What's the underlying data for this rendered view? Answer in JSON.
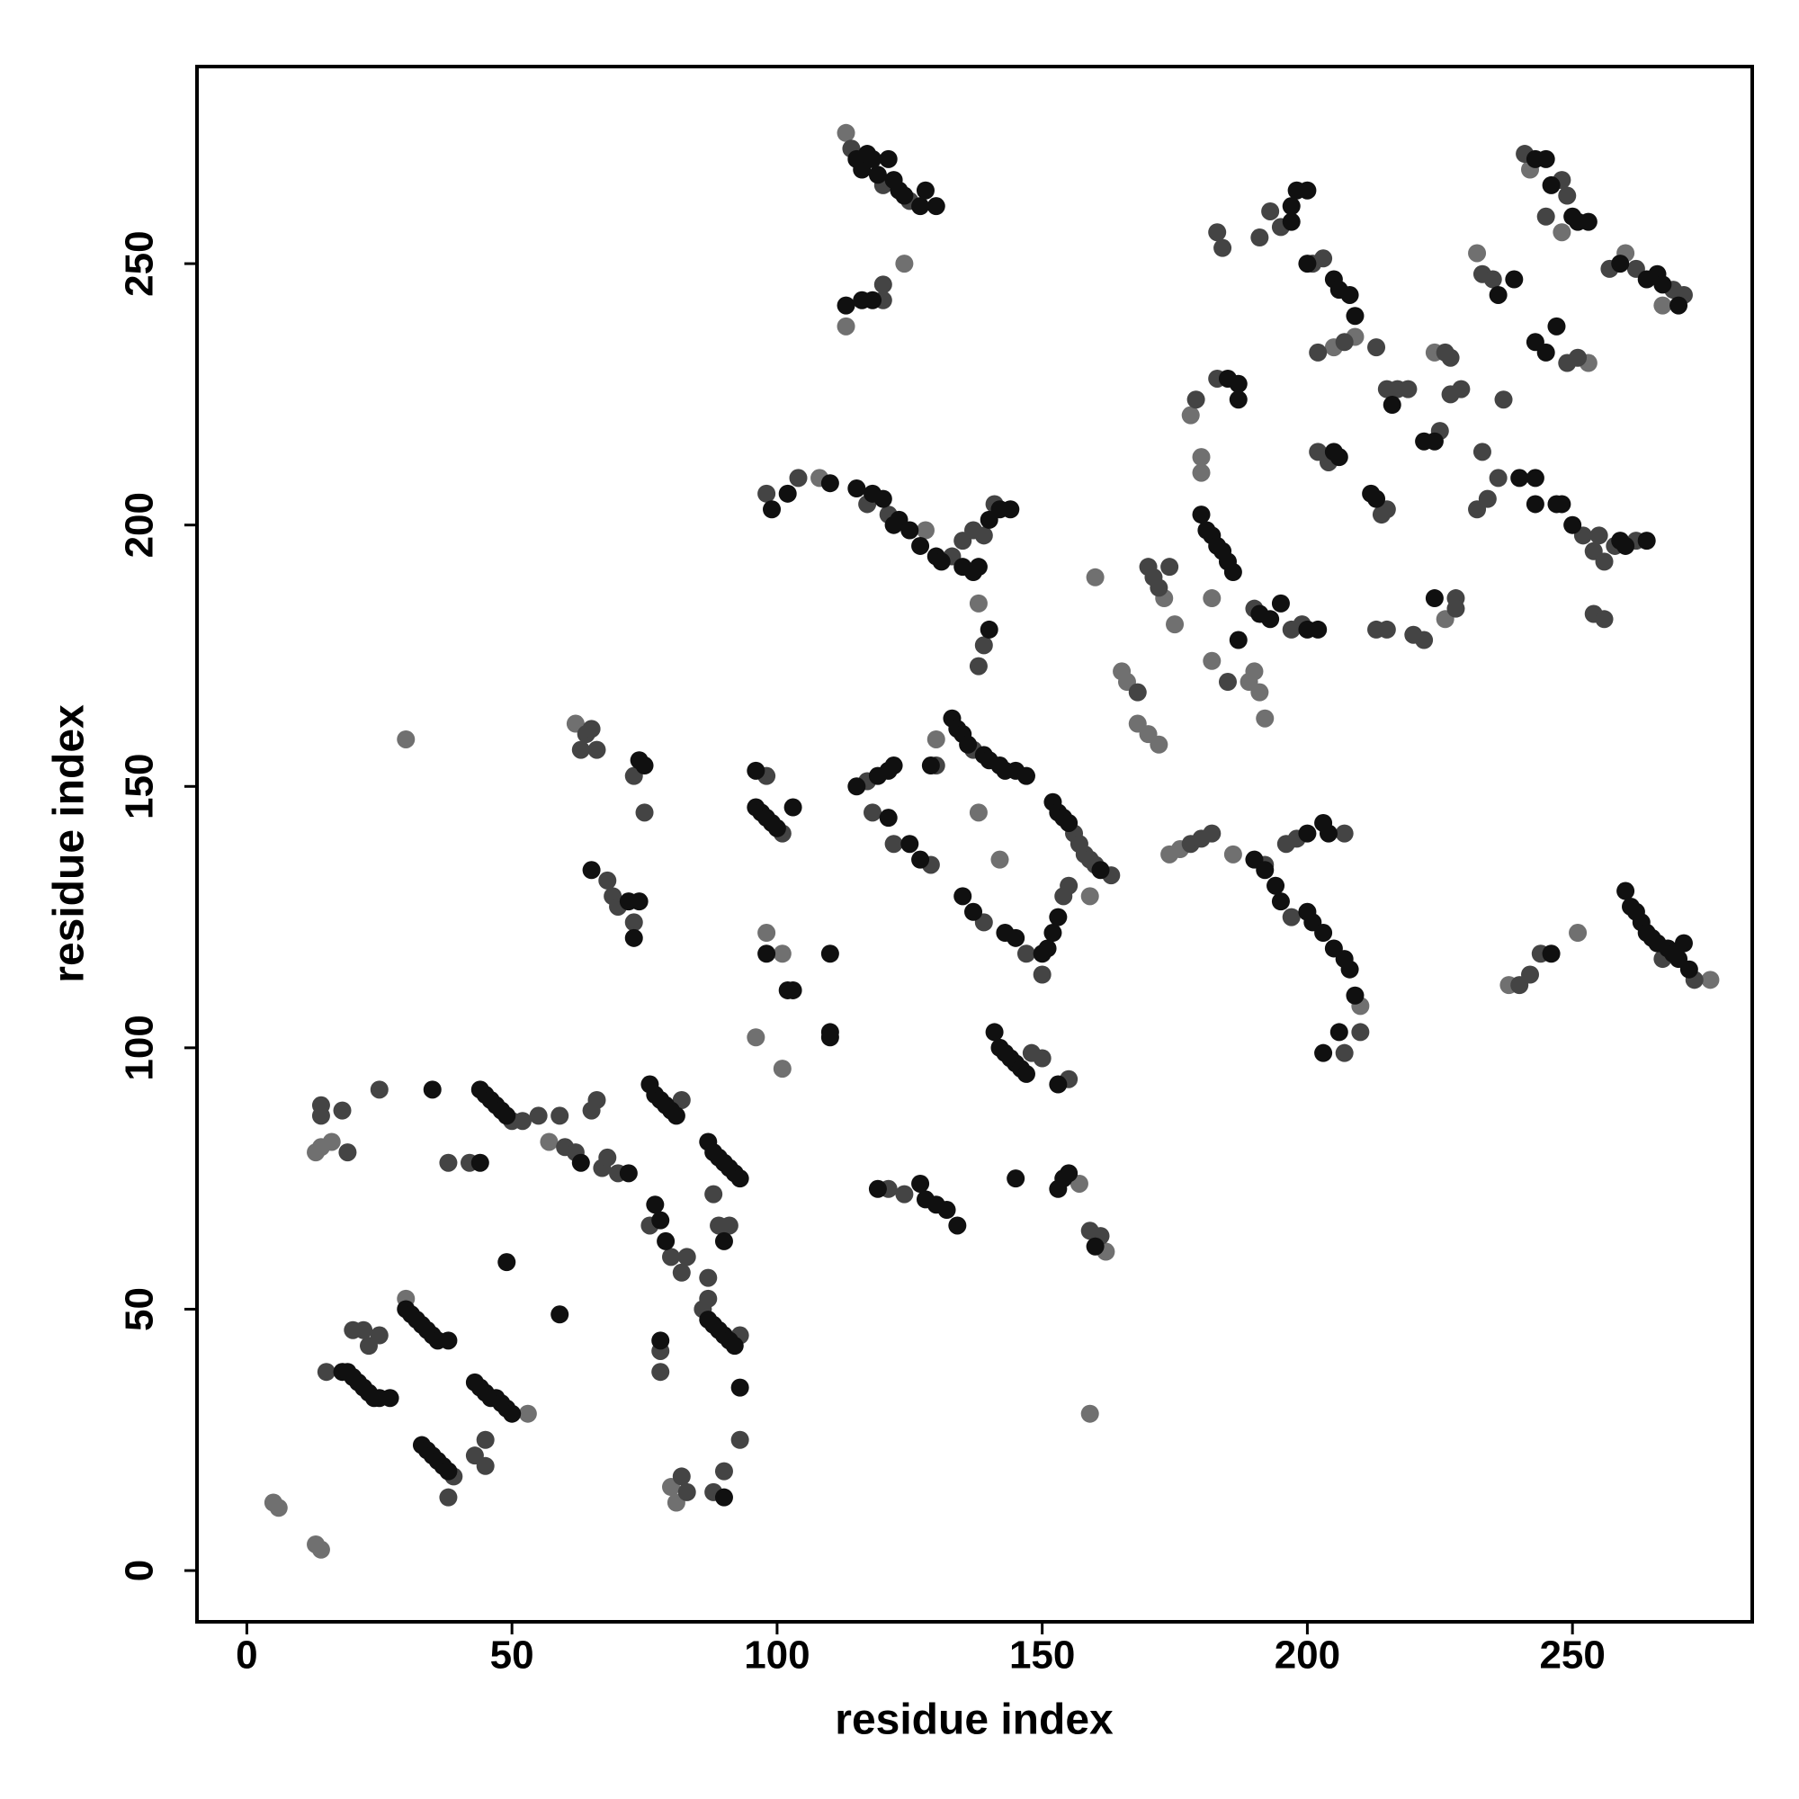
{
  "chart_data": {
    "type": "scatter",
    "xlabel": "residue index",
    "ylabel": "residue index",
    "xlim": [
      -9.4,
      283.9
    ],
    "ylim": [
      -9.8,
      287.7
    ],
    "xticks": [
      0,
      50,
      100,
      150,
      200,
      250
    ],
    "yticks": [
      0,
      50,
      100,
      150,
      200,
      250
    ],
    "series": [
      {
        "color": "#707070",
        "x": [
          5,
          6,
          13,
          14,
          30,
          53,
          13,
          14,
          16,
          57,
          30,
          62,
          80,
          81,
          98,
          101,
          101,
          96,
          108,
          113,
          113,
          124,
          128,
          130,
          138,
          142,
          138,
          157,
          162,
          159,
          159,
          160,
          165,
          166,
          173,
          175,
          168,
          170,
          172,
          174,
          176,
          186,
          178,
          180,
          180,
          182,
          182,
          189,
          190,
          191,
          192,
          205,
          209,
          224,
          210,
          226,
          232,
          242,
          248,
          253,
          260,
          267,
          276,
          238,
          251
        ],
        "y": [
          13,
          12,
          5,
          4,
          52,
          30,
          80,
          81,
          82,
          82,
          159,
          162,
          16,
          13,
          122,
          118,
          96,
          102,
          209,
          275,
          238,
          250,
          199,
          159,
          145,
          136,
          185,
          74,
          61,
          30,
          129,
          190,
          172,
          170,
          186,
          181,
          162,
          160,
          158,
          137,
          138,
          137,
          221,
          213,
          210,
          186,
          174,
          170,
          172,
          168,
          163,
          234,
          236,
          233,
          108,
          182,
          252,
          268,
          256,
          231,
          252,
          242,
          113,
          112,
          122
        ]
      },
      {
        "color": "#444444",
        "x": [
          20,
          22,
          23,
          25,
          15,
          39,
          38,
          43,
          45,
          45,
          14,
          14,
          18,
          19,
          25,
          38,
          42,
          50,
          52,
          55,
          59,
          60,
          62,
          65,
          66,
          67,
          68,
          70,
          64,
          63,
          65,
          66,
          73,
          75,
          68,
          69,
          70,
          73,
          82,
          76,
          80,
          82,
          83,
          78,
          78,
          82,
          83,
          88,
          89,
          91,
          86,
          93,
          87,
          87,
          88,
          90,
          93,
          98,
          101,
          98,
          104,
          114,
          120,
          125,
          120,
          120,
          117,
          121,
          133,
          135,
          137,
          139,
          141,
          117,
          118,
          122,
          129,
          130,
          137,
          139,
          138,
          139,
          147,
          154,
          150,
          148,
          150,
          155,
          156,
          157,
          158,
          159,
          160,
          163,
          155,
          121,
          124,
          159,
          161,
          168,
          170,
          171,
          172,
          174,
          178,
          180,
          182,
          179,
          183,
          183,
          184,
          185,
          190,
          197,
          199,
          191,
          193,
          195,
          201,
          203,
          202,
          207,
          213,
          215,
          217,
          219,
          226,
          227,
          202,
          204,
          214,
          215,
          197,
          192,
          196,
          198,
          207,
          207,
          210,
          213,
          215,
          220,
          222,
          228,
          228,
          225,
          227,
          229,
          233,
          235,
          237,
          233,
          236,
          252,
          232,
          234,
          241,
          248,
          249,
          245,
          249,
          251,
          254,
          255,
          256,
          258,
          262,
          254,
          256,
          257,
          262,
          269,
          271,
          273,
          267,
          240,
          242,
          244
        ],
        "y": [
          46,
          46,
          43,
          45,
          38,
          18,
          14,
          22,
          20,
          25,
          89,
          87,
          88,
          80,
          92,
          78,
          78,
          86,
          86,
          87,
          87,
          81,
          80,
          88,
          90,
          77,
          79,
          76,
          160,
          157,
          161,
          157,
          152,
          145,
          132,
          129,
          127,
          124,
          90,
          66,
          60,
          57,
          60,
          42,
          38,
          18,
          15,
          72,
          66,
          66,
          50,
          45,
          56,
          52,
          15,
          19,
          25,
          152,
          141,
          206,
          209,
          272,
          265,
          262,
          246,
          243,
          204,
          202,
          194,
          197,
          199,
          198,
          204,
          151,
          145,
          139,
          135,
          154,
          157,
          177,
          173,
          124,
          118,
          129,
          114,
          99,
          98,
          94,
          141,
          139,
          137,
          136,
          135,
          133,
          131,
          73,
          72,
          65,
          64,
          168,
          192,
          190,
          188,
          192,
          139,
          140,
          141,
          224,
          228,
          256,
          253,
          170,
          184,
          180,
          181,
          255,
          260,
          257,
          250,
          251,
          233,
          235,
          234,
          226,
          226,
          226,
          233,
          232,
          214,
          212,
          202,
          203,
          125,
          135,
          139,
          140,
          141,
          99,
          103,
          180,
          180,
          179,
          178,
          186,
          184,
          218,
          225,
          226,
          248,
          247,
          224,
          214,
          209,
          198,
          203,
          205,
          271,
          266,
          263,
          259,
          231,
          232,
          195,
          198,
          193,
          196,
          197,
          183,
          182,
          249,
          249,
          245,
          244,
          113,
          117,
          112,
          114,
          118
        ]
      },
      {
        "color": "#101010",
        "x": [
          18,
          19,
          20,
          21,
          22,
          23,
          24,
          25,
          27,
          30,
          31,
          32,
          33,
          34,
          35,
          36,
          38,
          33,
          34,
          35,
          36,
          37,
          38,
          43,
          44,
          45,
          46,
          47,
          48,
          49,
          50,
          49,
          59,
          35,
          44,
          44,
          45,
          46,
          47,
          48,
          49,
          63,
          72,
          74,
          75,
          65,
          72,
          73,
          74,
          76,
          77,
          78,
          79,
          80,
          81,
          77,
          78,
          79,
          78,
          87,
          88,
          89,
          90,
          91,
          92,
          93,
          90,
          87,
          88,
          89,
          90,
          91,
          92,
          90,
          93,
          96,
          96,
          97,
          98,
          99,
          100,
          103,
          99,
          102,
          110,
          98,
          102,
          103,
          110,
          110,
          110,
          115,
          116,
          117,
          118,
          119,
          121,
          122,
          123,
          124,
          127,
          128,
          130,
          113,
          116,
          118,
          115,
          118,
          120,
          122,
          123,
          125,
          127,
          130,
          131,
          135,
          137,
          138,
          140,
          142,
          144,
          115,
          119,
          121,
          122,
          121,
          125,
          127,
          129,
          133,
          134,
          135,
          136,
          139,
          140,
          142,
          143,
          145,
          147,
          140,
          135,
          137,
          143,
          145,
          150,
          151,
          152,
          153,
          141,
          142,
          143,
          144,
          145,
          146,
          147,
          153,
          145,
          152,
          153,
          154,
          155,
          161,
          119,
          127,
          128,
          130,
          132,
          134,
          153,
          154,
          155,
          160,
          185,
          187,
          187,
          180,
          181,
          182,
          183,
          184,
          185,
          186,
          187,
          191,
          193,
          195,
          200,
          202,
          197,
          198,
          200,
          197,
          200,
          205,
          206,
          208,
          209,
          216,
          205,
          206,
          212,
          213,
          190,
          192,
          194,
          195,
          200,
          203,
          204,
          200,
          201,
          203,
          205,
          207,
          208,
          209,
          206,
          203,
          224,
          222,
          224,
          236,
          239,
          240,
          243,
          243,
          247,
          248,
          250,
          243,
          245,
          246,
          250,
          251,
          253,
          243,
          245,
          247,
          259,
          260,
          264,
          259,
          264,
          266,
          267,
          270,
          260,
          261,
          262,
          263,
          264,
          265,
          266,
          268,
          269,
          270,
          272,
          271,
          246
        ],
        "y": [
          38,
          38,
          37,
          36,
          35,
          34,
          33,
          33,
          33,
          50,
          49,
          48,
          47,
          46,
          45,
          44,
          44,
          24,
          23,
          22,
          21,
          20,
          19,
          36,
          35,
          34,
          33,
          33,
          32,
          31,
          30,
          59,
          49,
          92,
          78,
          92,
          91,
          90,
          89,
          88,
          87,
          78,
          76,
          155,
          154,
          134,
          128,
          121,
          128,
          93,
          91,
          90,
          89,
          88,
          87,
          70,
          67,
          63,
          44,
          82,
          80,
          79,
          78,
          77,
          76,
          75,
          63,
          48,
          47,
          46,
          45,
          44,
          43,
          14,
          35,
          153,
          146,
          145,
          144,
          143,
          142,
          146,
          203,
          206,
          208,
          118,
          111,
          111,
          118,
          103,
          102,
          270,
          268,
          271,
          270,
          267,
          270,
          266,
          264,
          263,
          261,
          264,
          261,
          242,
          243,
          243,
          207,
          206,
          205,
          200,
          201,
          199,
          196,
          194,
          193,
          192,
          191,
          192,
          201,
          203,
          203,
          150,
          152,
          153,
          154,
          144,
          139,
          136,
          154,
          163,
          161,
          160,
          158,
          156,
          155,
          154,
          153,
          153,
          152,
          180,
          129,
          126,
          122,
          121,
          118,
          119,
          122,
          125,
          103,
          100,
          99,
          98,
          97,
          96,
          95,
          93,
          75,
          147,
          145,
          144,
          143,
          134,
          73,
          74,
          71,
          70,
          69,
          66,
          73,
          75,
          76,
          62,
          228,
          227,
          224,
          202,
          199,
          198,
          196,
          195,
          193,
          191,
          178,
          183,
          182,
          185,
          180,
          180,
          261,
          264,
          264,
          258,
          250,
          247,
          245,
          244,
          240,
          223,
          214,
          213,
          206,
          205,
          136,
          134,
          131,
          128,
          141,
          143,
          141,
          126,
          124,
          122,
          119,
          117,
          115,
          110,
          103,
          99,
          186,
          216,
          216,
          244,
          247,
          209,
          204,
          209,
          204,
          204,
          200,
          270,
          270,
          265,
          259,
          258,
          258,
          235,
          233,
          238,
          197,
          196,
          197,
          250,
          247,
          248,
          246,
          242,
          130,
          127,
          126,
          124,
          122,
          121,
          120,
          119,
          118,
          117,
          115,
          120,
          118
        ]
      }
    ]
  }
}
